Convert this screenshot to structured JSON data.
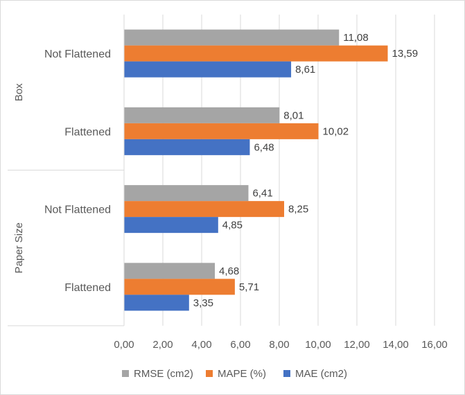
{
  "chart_data": {
    "type": "bar",
    "orientation": "horizontal",
    "groups": [
      {
        "name": "Box",
        "categories": [
          {
            "name": "Not Flattened",
            "values": {
              "RMSE (cm2)": 11.08,
              "MAPE (%)": 13.59,
              "MAE (cm2)": 8.61
            },
            "labels": {
              "RMSE (cm2)": "11,08",
              "MAPE (%)": "13,59",
              "MAE (cm2)": "8,61"
            }
          },
          {
            "name": "Flattened",
            "values": {
              "RMSE (cm2)": 8.01,
              "MAPE (%)": 10.02,
              "MAE (cm2)": 6.48
            },
            "labels": {
              "RMSE (cm2)": "8,01",
              "MAPE (%)": "10,02",
              "MAE (cm2)": "6,48"
            }
          }
        ]
      },
      {
        "name": "Paper Size",
        "categories": [
          {
            "name": "Not Flattened",
            "values": {
              "RMSE (cm2)": 6.41,
              "MAPE (%)": 8.25,
              "MAE (cm2)": 4.85
            },
            "labels": {
              "RMSE (cm2)": "6,41",
              "MAPE (%)": "8,25",
              "MAE (cm2)": "4,85"
            }
          },
          {
            "name": "Flattened",
            "values": {
              "RMSE (cm2)": 4.68,
              "MAPE (%)": 5.71,
              "MAE (cm2)": 3.35
            },
            "labels": {
              "RMSE (cm2)": "4,68",
              "MAPE (%)": "5,71",
              "MAE (cm2)": "3,35"
            }
          }
        ]
      }
    ],
    "series": [
      {
        "name": "RMSE (cm2)",
        "color": "#a5a5a5"
      },
      {
        "name": "MAPE (%)",
        "color": "#ed7d31"
      },
      {
        "name": "MAE (cm2)",
        "color": "#4472c4"
      }
    ],
    "xlim": [
      0,
      16
    ],
    "x_ticks": [
      0,
      2,
      4,
      6,
      8,
      10,
      12,
      14,
      16
    ],
    "x_tick_labels": [
      "0,00",
      "2,00",
      "4,00",
      "6,00",
      "8,00",
      "10,00",
      "12,00",
      "14,00",
      "16,00"
    ],
    "grid": "vertical",
    "legend_position": "bottom",
    "title": "",
    "xlabel": "",
    "ylabel": ""
  }
}
